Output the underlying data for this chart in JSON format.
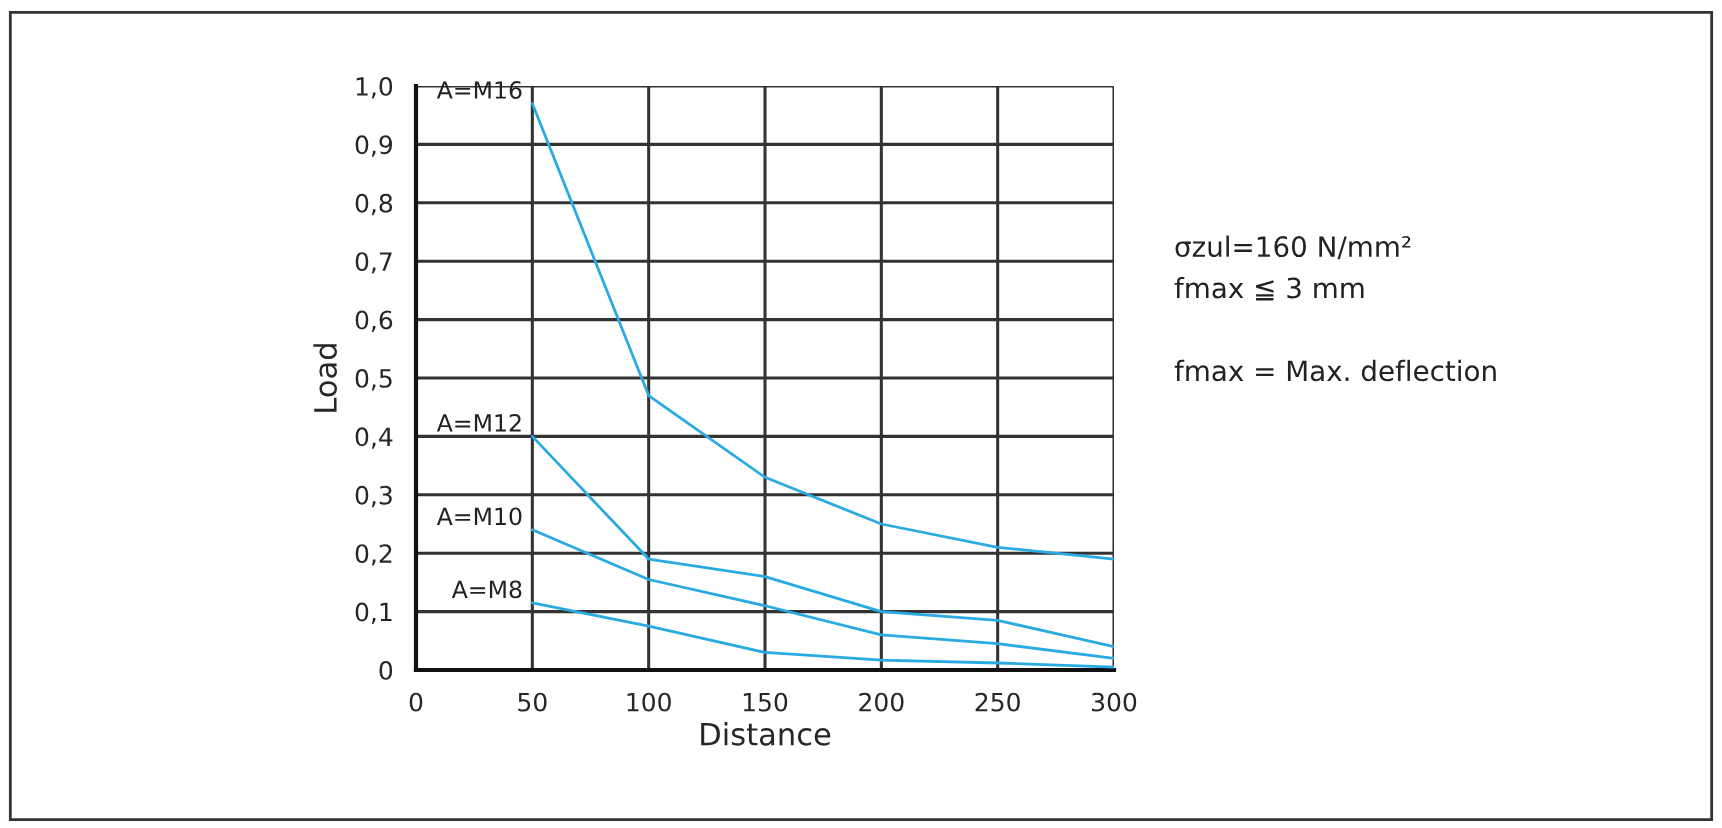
{
  "chart_data": {
    "type": "line",
    "xlabel": "Distance",
    "ylabel": "Load",
    "x": [
      50,
      100,
      150,
      200,
      250,
      300
    ],
    "series": [
      {
        "name": "A=M16",
        "color": "#29abe2",
        "values": [
          0.97,
          0.47,
          0.33,
          0.25,
          0.21,
          0.19
        ]
      },
      {
        "name": "A=M12",
        "color": "#29abe2",
        "values": [
          0.4,
          0.19,
          0.16,
          0.1,
          0.085,
          0.04
        ]
      },
      {
        "name": "A=M10",
        "color": "#29abe2",
        "values": [
          0.24,
          0.155,
          0.11,
          0.06,
          0.045,
          0.02
        ]
      },
      {
        "name": "A=M8",
        "color": "#29abe2",
        "values": [
          0.115,
          0.075,
          0.03,
          0.017,
          0.012,
          0.005
        ]
      }
    ],
    "xlim": [
      0,
      300
    ],
    "xticks": [
      0,
      50,
      100,
      150,
      200,
      250,
      300
    ],
    "ylim": [
      0,
      1.0
    ],
    "yticks": [
      0,
      {
        "value": 0.1,
        "label": "0,1"
      },
      {
        "value": 0.2,
        "label": "0,2"
      },
      {
        "value": 0.3,
        "label": "0,3"
      },
      {
        "value": 0.4,
        "label": "0,4"
      },
      {
        "value": 0.5,
        "label": "0,5"
      },
      {
        "value": 0.6,
        "label": "0,6"
      },
      {
        "value": 0.7,
        "label": "0,7"
      },
      {
        "value": 0.8,
        "label": "0,8"
      },
      {
        "value": 0.9,
        "label": "0,9"
      },
      {
        "value": 1.0,
        "label": "1,0"
      }
    ],
    "grid": true,
    "legend": false,
    "marker": "none",
    "line_style": "solid",
    "annotations": [
      "σzul=160 N/mm²",
      "fmax ≦ 3 mm",
      "fmax = Max. deflection"
    ]
  }
}
